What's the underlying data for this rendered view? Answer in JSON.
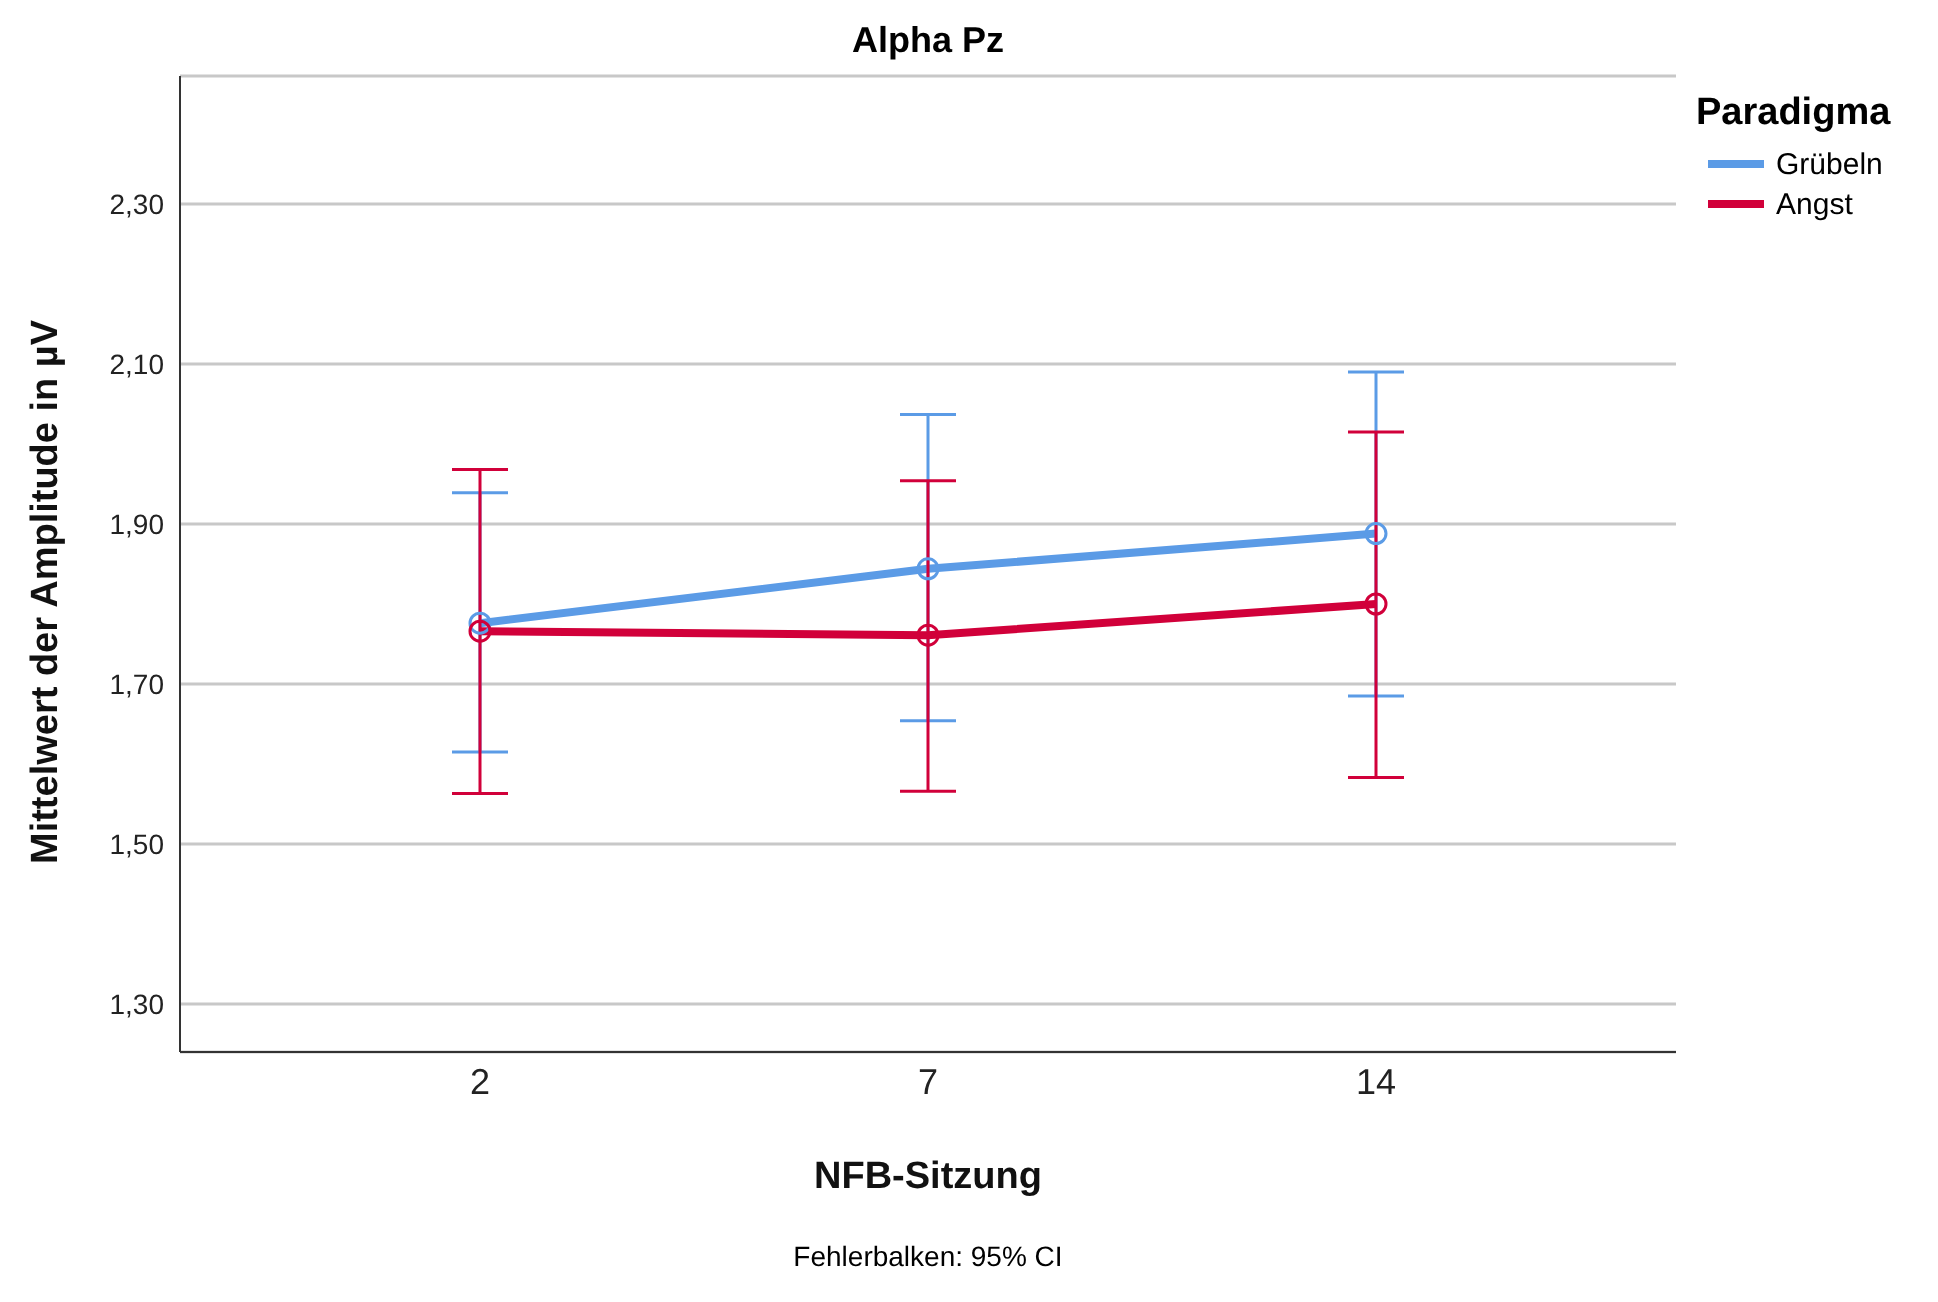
{
  "chart_data": {
    "type": "line",
    "title": "Alpha Pz",
    "xlabel": "NFB-Sitzung",
    "ylabel": "Mittelwert der Amplitude in µV",
    "legend_title": "Paradigma",
    "categories": [
      "2",
      "7",
      "14"
    ],
    "series": [
      {
        "name": "Grübeln",
        "color": "#5b9be6",
        "values": [
          1.776,
          1.844,
          1.888
        ],
        "errors": [
          [
            1.615,
            1.939
          ],
          [
            1.654,
            2.037
          ],
          [
            1.685,
            2.09
          ]
        ]
      },
      {
        "name": "Angst",
        "color": "#d1003a",
        "values": [
          1.766,
          1.761,
          1.8
        ],
        "errors": [
          [
            1.563,
            1.968
          ],
          [
            1.566,
            1.954
          ],
          [
            1.583,
            2.015
          ]
        ]
      }
    ],
    "ylim": [
      1.24,
      2.46
    ],
    "yticks": [
      {
        "value": 1.3,
        "label": "1,30"
      },
      {
        "value": 1.5,
        "label": "1,50"
      },
      {
        "value": 1.7,
        "label": "1,70"
      },
      {
        "value": 1.9,
        "label": "1,90"
      },
      {
        "value": 2.1,
        "label": "2,10"
      },
      {
        "value": 2.3,
        "label": "2,30"
      }
    ],
    "grid": "y",
    "legend": "top right",
    "marker": "circle",
    "line_style": "solid",
    "annotations": [
      "Fehlerbalken: 95% CI"
    ]
  }
}
